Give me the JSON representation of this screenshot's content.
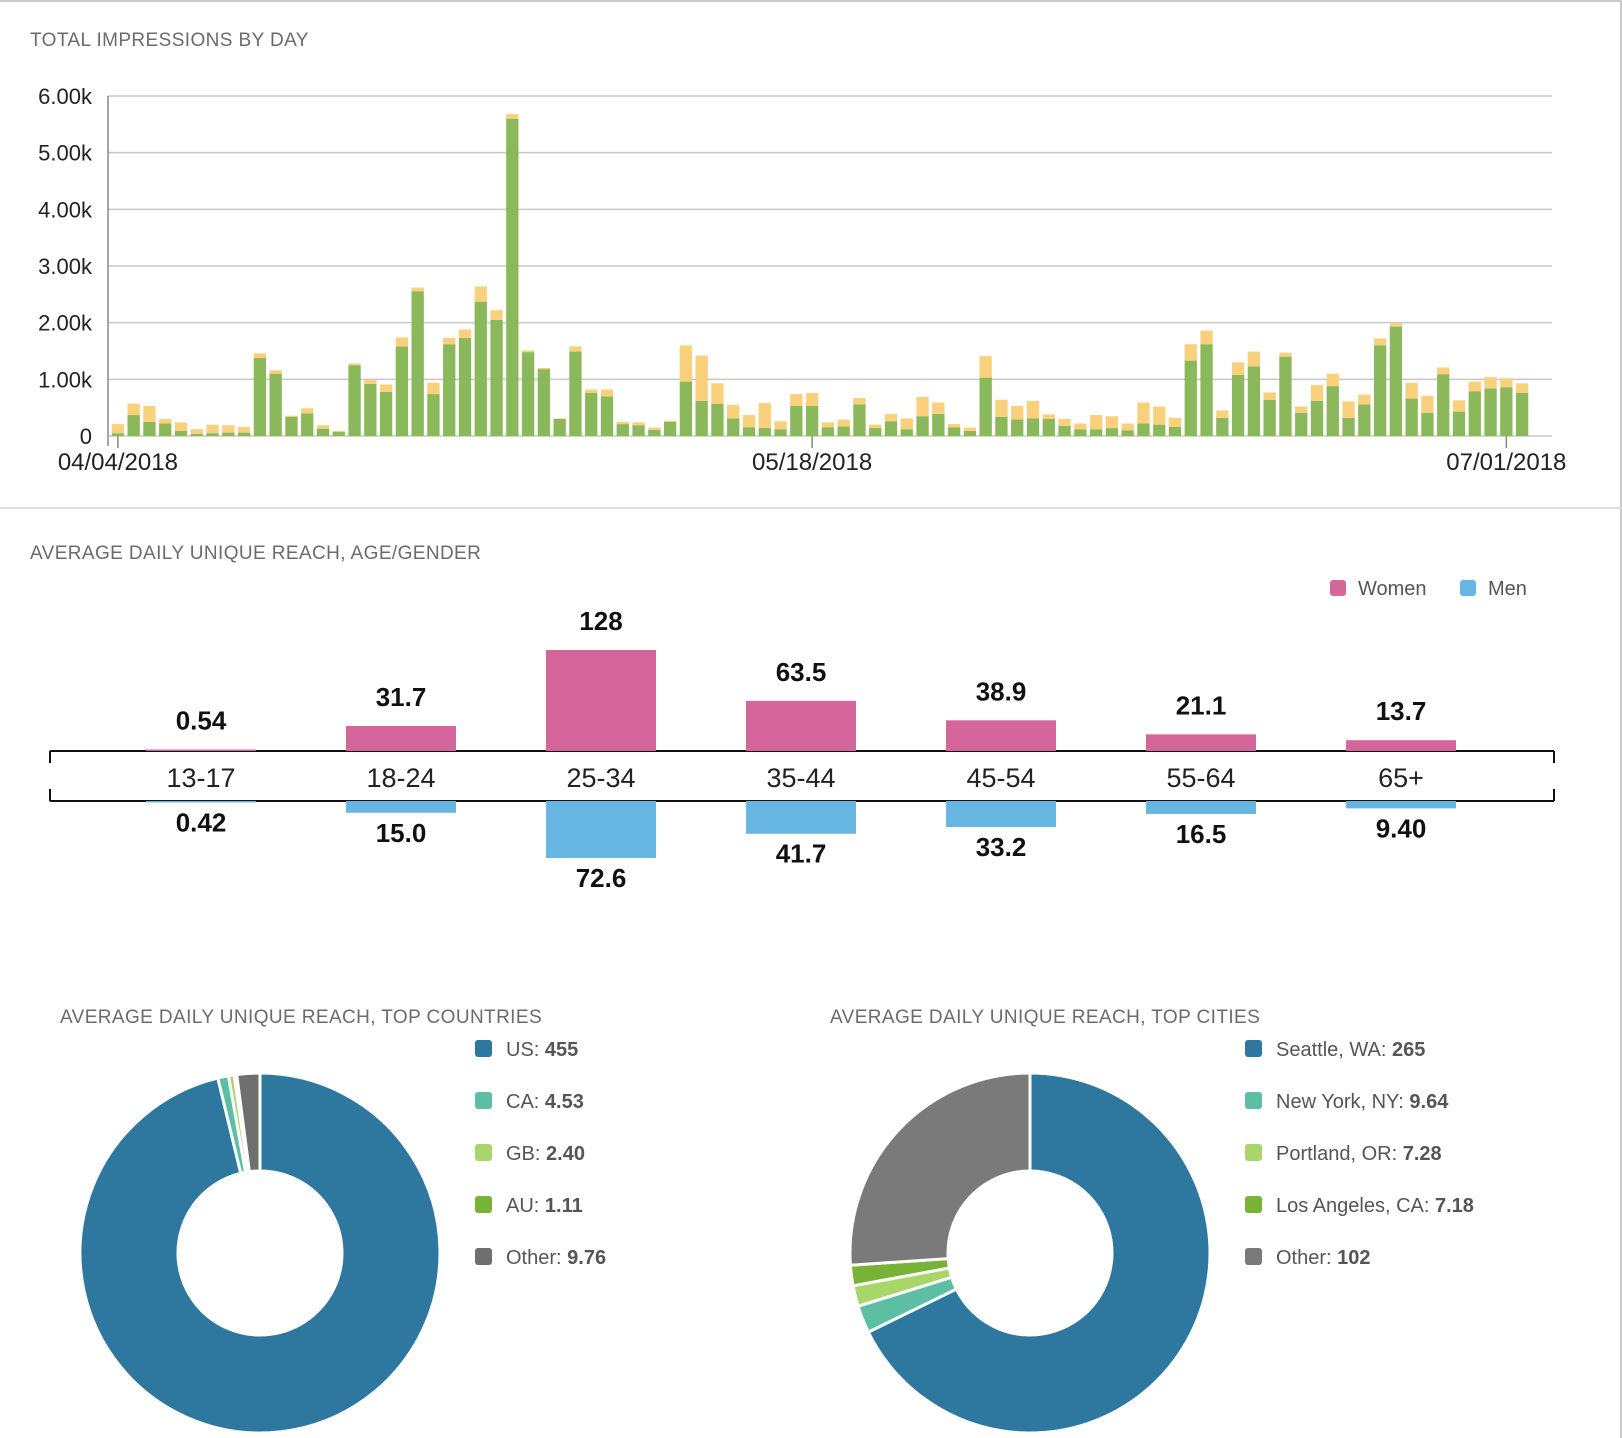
{
  "impressions": {
    "title": "TOTAL IMPRESSIONS BY DAY",
    "colors": {
      "green": "#8bb85a",
      "yellow": "#f9d07c",
      "orange": "#e09b44"
    },
    "chart_data": {
      "type": "bar",
      "stacked": true,
      "ylim": [
        0,
        6000
      ],
      "yticks": [
        0,
        1000,
        2000,
        3000,
        4000,
        5000,
        6000
      ],
      "ytick_labels": [
        "0",
        "1.00k",
        "2.00k",
        "3.00k",
        "4.00k",
        "5.00k",
        "6.00k"
      ],
      "xtick_labels": [
        {
          "index": 0,
          "label": "04/04/2018"
        },
        {
          "index": 44,
          "label": "05/18/2018"
        },
        {
          "index": 88,
          "label": "07/01/2018"
        }
      ],
      "grid": true,
      "series": [
        {
          "color": "#8bb85a",
          "values": [
            50,
            370,
            250,
            220,
            90,
            40,
            50,
            60,
            60,
            1380,
            1100,
            340,
            400,
            130,
            70,
            1250,
            920,
            780,
            1580,
            2550,
            740,
            1620,
            1730,
            2370,
            2050,
            5600,
            1480,
            1180,
            300,
            1490,
            760,
            700,
            210,
            190,
            110,
            250,
            960,
            620,
            570,
            310,
            150,
            140,
            120,
            530,
            530,
            150,
            170,
            560,
            140,
            260,
            120,
            350,
            390,
            150,
            90,
            1030,
            340,
            290,
            310,
            300,
            180,
            120,
            120,
            140,
            100,
            220,
            200,
            160,
            1330,
            1620,
            320,
            1080,
            1230,
            640,
            1400,
            410,
            620,
            880,
            320,
            560,
            1600,
            1930,
            660,
            410,
            1090,
            430,
            790,
            840,
            860,
            760
          ]
        },
        {
          "color": "#f9d07c",
          "values": [
            160,
            200,
            280,
            80,
            150,
            80,
            150,
            130,
            100,
            80,
            60,
            20,
            90,
            60,
            20,
            30,
            70,
            130,
            160,
            70,
            200,
            110,
            150,
            270,
            170,
            80,
            30,
            20,
            10,
            90,
            60,
            120,
            40,
            50,
            40,
            20,
            640,
            800,
            360,
            240,
            220,
            440,
            140,
            210,
            230,
            90,
            120,
            110,
            60,
            130,
            190,
            340,
            200,
            60,
            60,
            380,
            300,
            240,
            310,
            80,
            120,
            100,
            250,
            210,
            120,
            370,
            320,
            160,
            290,
            240,
            130,
            220,
            260,
            130,
            70,
            110,
            280,
            220,
            290,
            170,
            120,
            60,
            280,
            300,
            120,
            200,
            170,
            200,
            160,
            170
          ]
        },
        {
          "color": "#e09b44",
          "values": [
            0,
            0,
            0,
            0,
            0,
            0,
            0,
            0,
            0,
            0,
            0,
            0,
            0,
            0,
            0,
            0,
            0,
            0,
            0,
            0,
            0,
            0,
            0,
            0,
            0,
            0,
            0,
            0,
            0,
            0,
            0,
            0,
            0,
            0,
            0,
            0,
            0,
            0,
            0,
            0,
            0,
            0,
            0,
            0,
            0,
            0,
            0,
            0,
            0,
            0,
            0,
            0,
            0,
            0,
            0,
            0,
            0,
            0,
            0,
            0,
            0,
            0,
            0,
            0,
            0,
            0,
            0,
            0,
            0,
            0,
            0,
            0,
            0,
            0,
            0,
            0,
            0,
            0,
            0,
            0,
            0,
            0,
            0,
            0,
            0,
            0,
            0,
            0,
            0,
            0
          ]
        }
      ]
    }
  },
  "age_gender": {
    "title": "AVERAGE DAILY UNIQUE REACH, AGE/GENDER",
    "legend": [
      {
        "label": "Women",
        "color": "#d4669b"
      },
      {
        "label": "Men",
        "color": "#67b5e1"
      }
    ],
    "chart_data": {
      "type": "bar",
      "categories": [
        "13-17",
        "18-24",
        "25-34",
        "35-44",
        "45-54",
        "55-64",
        "65+"
      ],
      "series": [
        {
          "name": "Women",
          "values": [
            0.54,
            31.7,
            128,
            63.5,
            38.9,
            21.1,
            13.7
          ],
          "labels": [
            "0.54",
            "31.7",
            "128",
            "63.5",
            "38.9",
            "21.1",
            "13.7"
          ]
        },
        {
          "name": "Men",
          "values": [
            0.42,
            15.0,
            72.6,
            41.7,
            33.2,
            16.5,
            9.4
          ],
          "labels": [
            "0.42",
            "15.0",
            "72.6",
            "41.7",
            "33.2",
            "16.5",
            "9.40"
          ]
        }
      ]
    }
  },
  "countries": {
    "title": "AVERAGE DAILY UNIQUE REACH, TOP COUNTRIES",
    "chart_data": {
      "type": "pie",
      "donut": true,
      "labels": [
        "US",
        "CA",
        "GB",
        "AU",
        "Other"
      ],
      "values": [
        455,
        4.53,
        2.4,
        1.11,
        9.76
      ],
      "value_labels": [
        "455",
        "4.53",
        "2.40",
        "1.11",
        "9.76"
      ],
      "colors": [
        "#2e789f",
        "#5cbfa4",
        "#a9d66b",
        "#76b337",
        "#6f6f6f"
      ]
    }
  },
  "cities": {
    "title": "AVERAGE DAILY UNIQUE REACH, TOP CITIES",
    "chart_data": {
      "type": "pie",
      "donut": true,
      "labels": [
        "Seattle, WA",
        "New York, NY",
        "Portland, OR",
        "Los Angeles, CA",
        "Other"
      ],
      "values": [
        265,
        9.64,
        7.28,
        7.18,
        102
      ],
      "value_labels": [
        "265",
        "9.64",
        "7.28",
        "7.18",
        "102"
      ],
      "colors": [
        "#2e789f",
        "#5cbfa4",
        "#a9d66b",
        "#76b337",
        "#7a7a7a"
      ]
    }
  }
}
